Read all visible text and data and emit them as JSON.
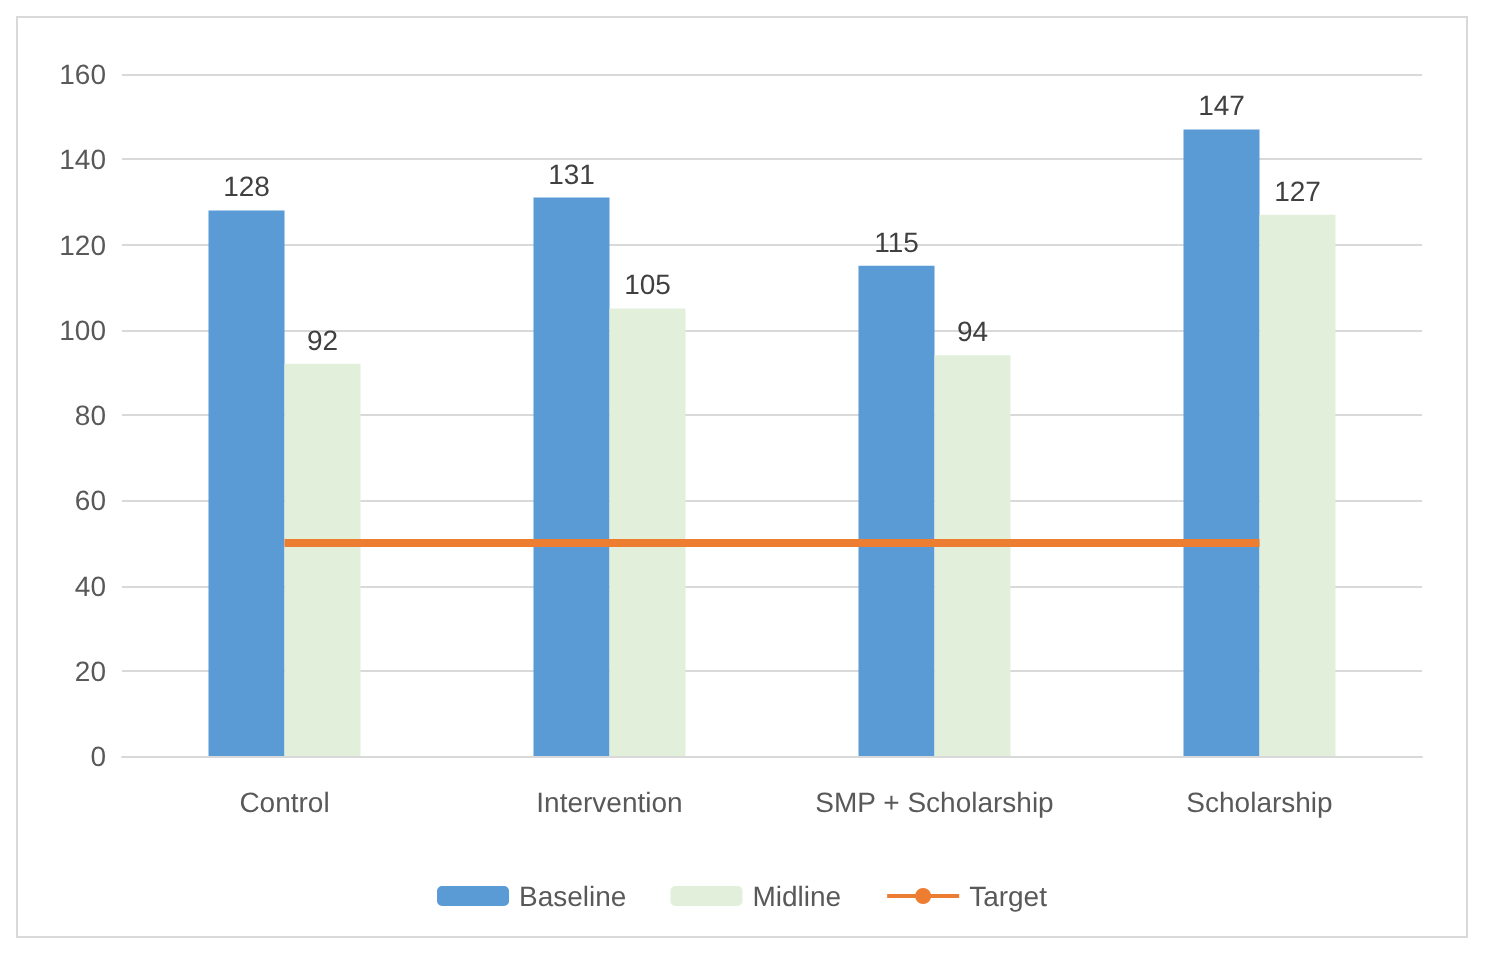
{
  "chart_data": {
    "type": "bar",
    "categories": [
      "Control",
      "Intervention",
      "SMP + Scholarship",
      "Scholarship"
    ],
    "series": [
      {
        "name": "Baseline",
        "color": "#5b9bd5",
        "values": [
          128,
          131,
          115,
          147
        ],
        "value_labels": [
          "128",
          "131",
          "115",
          "147"
        ]
      },
      {
        "name": "Midline",
        "color": "#e2efda",
        "values": [
          92,
          105,
          94,
          127
        ],
        "value_labels": [
          "92",
          "105",
          "94",
          "127"
        ]
      },
      {
        "name": "Target",
        "type": "line",
        "color": "#ed7d31",
        "values": [
          50,
          50,
          50,
          50
        ],
        "marker": "none"
      }
    ],
    "ylim": [
      0,
      160
    ],
    "yticks": [
      0,
      20,
      40,
      60,
      80,
      100,
      120,
      140,
      160
    ],
    "grid": "y",
    "legend": "bottom"
  }
}
